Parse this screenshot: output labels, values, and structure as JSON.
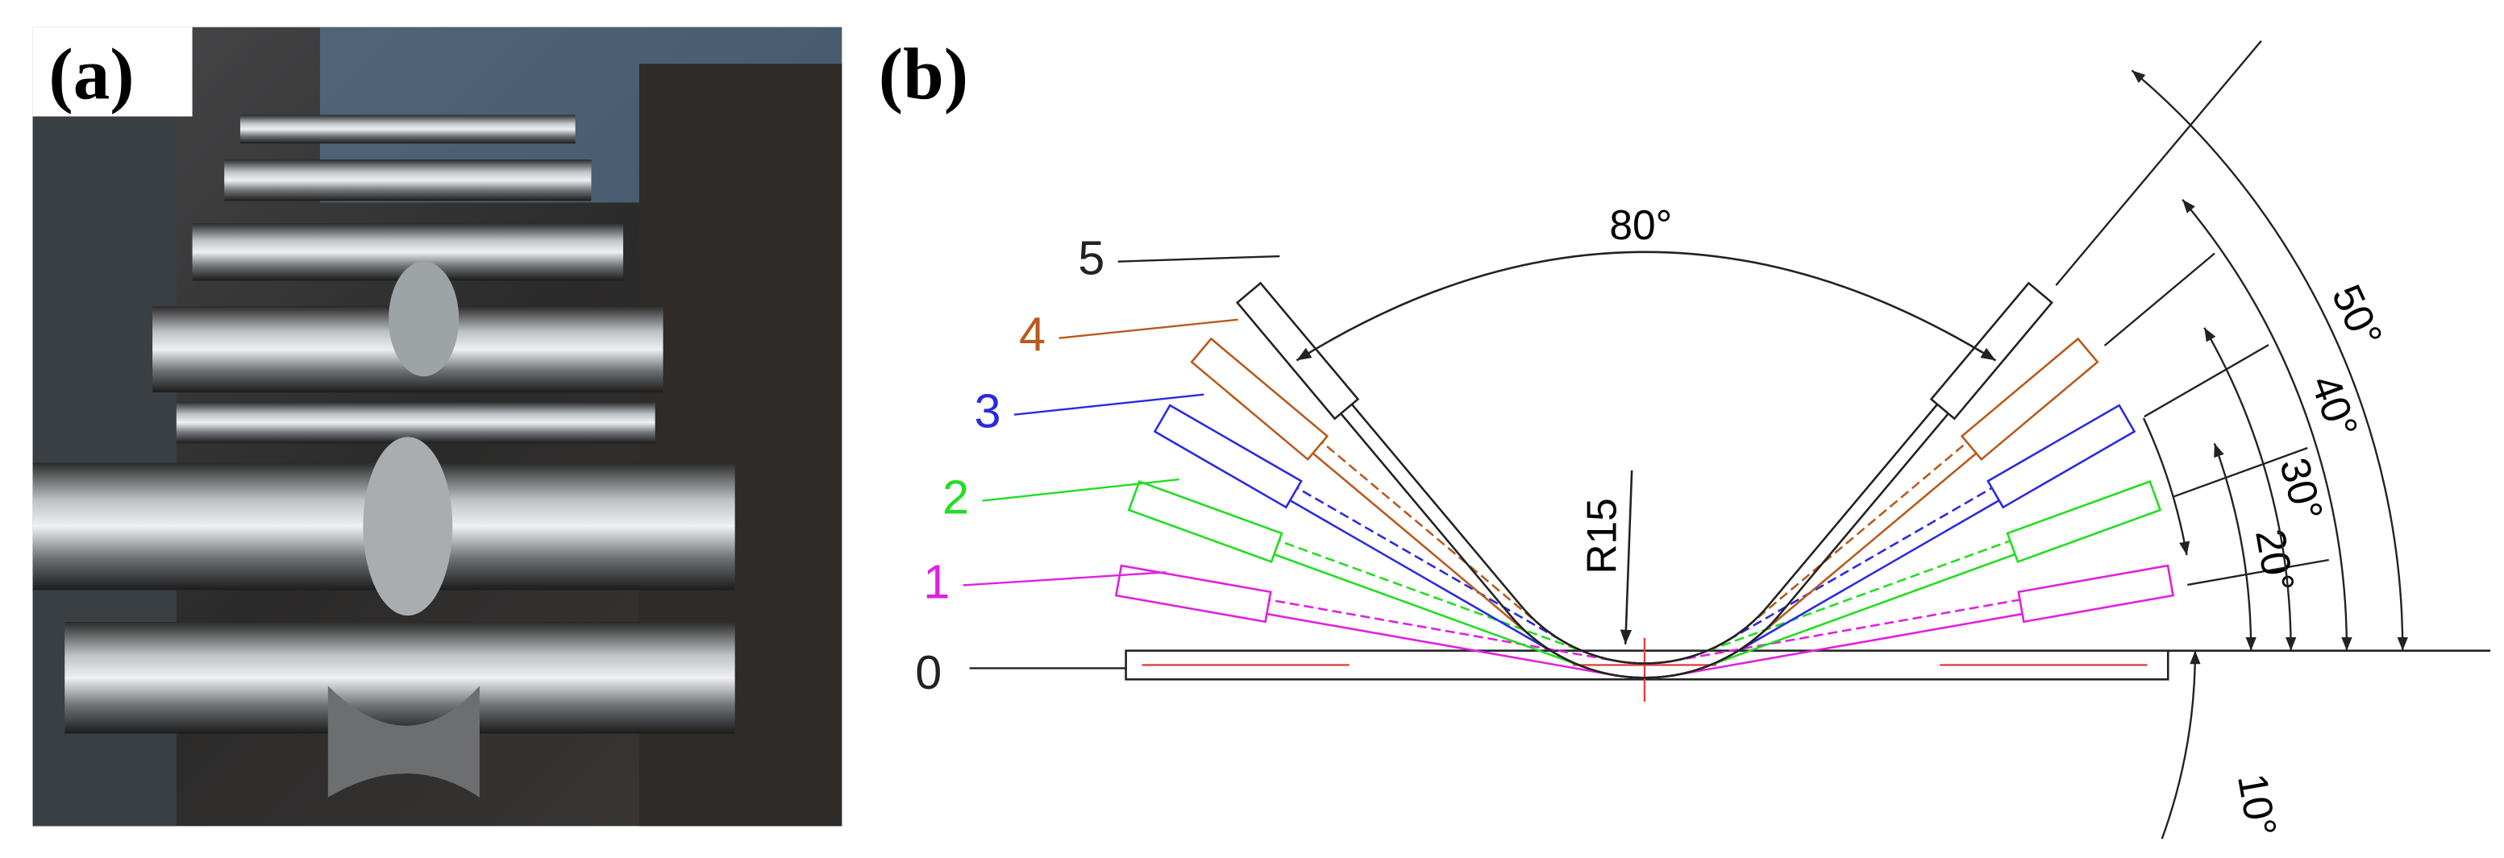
{
  "panels": {
    "a": {
      "label": "(a)"
    },
    "b": {
      "label": "(b)",
      "stage_labels": [
        "0",
        "1",
        "2",
        "3",
        "4",
        "5"
      ],
      "angle_labels": [
        "10°",
        "20°",
        "30°",
        "40°",
        "50°"
      ],
      "bend_angle_label": "80°",
      "radius_label": "R15"
    }
  }
}
